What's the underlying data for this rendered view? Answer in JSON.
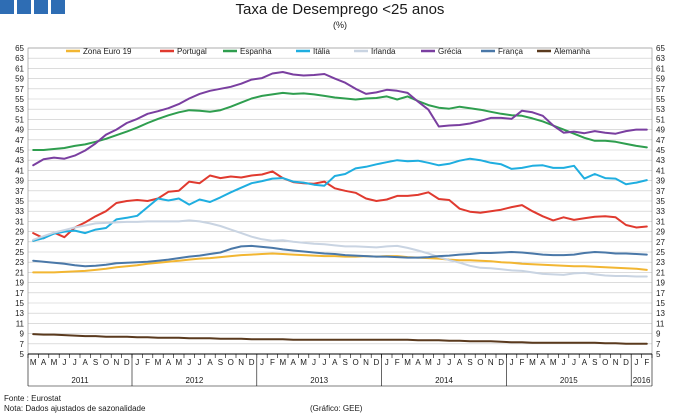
{
  "header": {
    "title": "Taxa de Desemprego <25 anos",
    "subtitle": "(%)"
  },
  "footer": {
    "source": "Fonte : Eurostat",
    "note": "Nota: Dados ajustados de sazonalidade",
    "credit": "(Gráfico: GEE)"
  },
  "colors": {
    "brand": "#2e6db4",
    "grid": "#c8c8c8",
    "axis": "#000000"
  },
  "chart_data": {
    "type": "line",
    "title": "Taxa de Desemprego <25 anos",
    "ylabel": "(%)",
    "ylim": [
      5,
      65
    ],
    "y_ticks": [
      5,
      7,
      9,
      11,
      13,
      15,
      17,
      19,
      21,
      23,
      25,
      27,
      29,
      31,
      33,
      35,
      37,
      39,
      41,
      43,
      45,
      47,
      49,
      51,
      53,
      55,
      57,
      59,
      61,
      63,
      65
    ],
    "grid": true,
    "legend_position": "top",
    "month_labels": [
      "M",
      "A",
      "M",
      "J",
      "J",
      "A",
      "S",
      "O",
      "N",
      "D",
      "J",
      "F",
      "M",
      "A",
      "M",
      "J",
      "J",
      "A",
      "S",
      "O",
      "N",
      "D",
      "J",
      "F",
      "M",
      "A",
      "M",
      "J",
      "J",
      "A",
      "S",
      "O",
      "N",
      "D",
      "J",
      "F",
      "M",
      "A",
      "M",
      "J",
      "J",
      "A",
      "S",
      "O",
      "N",
      "D",
      "J",
      "F",
      "M",
      "A",
      "M",
      "J",
      "J",
      "A",
      "S",
      "O",
      "N",
      "D",
      "J",
      "F"
    ],
    "year_labels": [
      {
        "label": "2011",
        "start": 0,
        "end": 9
      },
      {
        "label": "2012",
        "start": 10,
        "end": 21
      },
      {
        "label": "2013",
        "start": 22,
        "end": 33
      },
      {
        "label": "2014",
        "start": 34,
        "end": 45
      },
      {
        "label": "2015",
        "start": 46,
        "end": 57
      },
      {
        "label": "2016",
        "start": 58,
        "end": 59
      }
    ],
    "x": [
      "2011-03",
      "2011-04",
      "2011-05",
      "2011-06",
      "2011-07",
      "2011-08",
      "2011-09",
      "2011-10",
      "2011-11",
      "2011-12",
      "2012-01",
      "2012-02",
      "2012-03",
      "2012-04",
      "2012-05",
      "2012-06",
      "2012-07",
      "2012-08",
      "2012-09",
      "2012-10",
      "2012-11",
      "2012-12",
      "2013-01",
      "2013-02",
      "2013-03",
      "2013-04",
      "2013-05",
      "2013-06",
      "2013-07",
      "2013-08",
      "2013-09",
      "2013-10",
      "2013-11",
      "2013-12",
      "2014-01",
      "2014-02",
      "2014-03",
      "2014-04",
      "2014-05",
      "2014-06",
      "2014-07",
      "2014-08",
      "2014-09",
      "2014-10",
      "2014-11",
      "2014-12",
      "2015-01",
      "2015-02",
      "2015-03",
      "2015-04",
      "2015-05",
      "2015-06",
      "2015-07",
      "2015-08",
      "2015-09",
      "2015-10",
      "2015-11",
      "2015-12",
      "2016-01",
      "2016-02"
    ],
    "series": [
      {
        "name": "Zona Euro 19",
        "color": "#f2b632",
        "values": [
          21.0,
          21.0,
          21.0,
          21.1,
          21.2,
          21.3,
          21.5,
          21.7,
          22.0,
          22.2,
          22.4,
          22.7,
          22.9,
          23.1,
          23.3,
          23.5,
          23.7,
          23.8,
          24.0,
          24.2,
          24.4,
          24.5,
          24.6,
          24.7,
          24.6,
          24.5,
          24.4,
          24.3,
          24.2,
          24.2,
          24.1,
          24.1,
          24.2,
          24.1,
          24.2,
          24.2,
          24.0,
          23.9,
          23.8,
          23.7,
          23.5,
          23.4,
          23.4,
          23.3,
          23.2,
          23.0,
          22.9,
          22.7,
          22.6,
          22.5,
          22.4,
          22.3,
          22.2,
          22.2,
          22.1,
          22.0,
          21.9,
          21.8,
          21.7,
          21.5
        ]
      },
      {
        "name": "Portugal",
        "color": "#e03a2f",
        "values": [
          28.7,
          27.7,
          28.8,
          27.9,
          29.8,
          30.8,
          32.0,
          33.0,
          34.6,
          35.0,
          35.2,
          35.0,
          35.5,
          36.8,
          37.0,
          38.8,
          38.5,
          40.0,
          39.5,
          39.8,
          39.6,
          40.0,
          40.2,
          40.8,
          39.5,
          38.7,
          38.5,
          38.4,
          38.8,
          37.5,
          37.0,
          36.6,
          35.5,
          35.0,
          35.3,
          36.0,
          36.0,
          36.2,
          36.7,
          35.4,
          35.2,
          33.5,
          32.9,
          32.7,
          33.0,
          33.3,
          33.8,
          34.2,
          33.0,
          32.0,
          31.2,
          31.8,
          31.3,
          31.6,
          31.9,
          32.0,
          31.8,
          30.3,
          29.8,
          30.0
        ]
      },
      {
        "name": "Espanha",
        "color": "#2f9e4f",
        "values": [
          45.0,
          45.0,
          45.2,
          45.4,
          45.8,
          46.1,
          46.6,
          47.2,
          47.9,
          48.6,
          49.4,
          50.3,
          51.1,
          51.8,
          52.4,
          52.8,
          52.7,
          52.5,
          52.8,
          53.5,
          54.3,
          55.1,
          55.6,
          55.9,
          56.2,
          56.0,
          56.1,
          55.9,
          55.6,
          55.3,
          55.1,
          54.9,
          55.1,
          55.2,
          55.5,
          54.9,
          55.5,
          54.6,
          53.8,
          53.3,
          53.1,
          53.5,
          53.2,
          52.9,
          52.5,
          52.1,
          51.8,
          51.7,
          51.2,
          50.6,
          49.8,
          49.0,
          48.2,
          47.4,
          46.8,
          46.8,
          46.6,
          46.2,
          45.8,
          45.5
        ]
      },
      {
        "name": "Itália",
        "color": "#1faee0",
        "values": [
          27.2,
          27.7,
          28.6,
          29.0,
          29.2,
          28.7,
          29.4,
          29.7,
          31.4,
          31.7,
          32.1,
          33.8,
          35.5,
          35.1,
          35.5,
          34.3,
          35.3,
          34.8,
          35.7,
          36.7,
          37.6,
          38.5,
          38.9,
          39.4,
          39.5,
          38.8,
          38.6,
          38.2,
          38.0,
          39.9,
          40.3,
          41.4,
          41.7,
          42.2,
          42.6,
          43.0,
          42.8,
          42.9,
          42.5,
          42.0,
          42.3,
          42.9,
          43.3,
          43.0,
          42.5,
          42.2,
          41.3,
          41.5,
          41.9,
          42.0,
          41.5,
          41.5,
          41.9,
          39.4,
          40.3,
          39.5,
          39.4,
          38.3,
          38.6,
          39.1
        ]
      },
      {
        "name": "Irlanda",
        "color": "#c9d4e2",
        "values": [
          27.4,
          28.1,
          28.8,
          29.3,
          29.8,
          30.2,
          30.6,
          30.7,
          30.8,
          30.9,
          30.9,
          31.0,
          31.0,
          31.0,
          31.0,
          31.2,
          31.0,
          30.6,
          30.1,
          29.4,
          28.7,
          28.0,
          27.5,
          27.2,
          27.3,
          27.0,
          26.8,
          26.6,
          26.5,
          26.3,
          26.1,
          26.1,
          26.0,
          25.9,
          26.1,
          26.2,
          25.8,
          25.3,
          24.7,
          24.0,
          23.4,
          22.9,
          22.3,
          21.9,
          21.8,
          21.6,
          21.4,
          21.3,
          21.0,
          20.7,
          20.6,
          20.5,
          20.8,
          20.9,
          20.6,
          20.4,
          20.3,
          20.3,
          20.2,
          20.2
        ]
      },
      {
        "name": "Grécia",
        "color": "#7a3fa0",
        "values": [
          42.0,
          43.2,
          43.5,
          43.3,
          43.9,
          44.9,
          46.3,
          48.0,
          49.0,
          50.3,
          51.1,
          52.1,
          52.6,
          53.2,
          54.0,
          55.1,
          56.0,
          56.6,
          57.0,
          57.4,
          58.0,
          58.8,
          59.1,
          60.0,
          60.3,
          59.8,
          59.6,
          59.7,
          59.9,
          59.0,
          58.2,
          57.0,
          56.0,
          56.3,
          56.8,
          56.6,
          56.2,
          54.5,
          52.9,
          49.6,
          49.8,
          49.9,
          50.2,
          50.7,
          51.3,
          51.3,
          51.1,
          52.7,
          52.4,
          51.7,
          49.8,
          48.4,
          48.6,
          48.3,
          48.7,
          48.4,
          48.2,
          48.7,
          49.0,
          49.0
        ]
      },
      {
        "name": "França",
        "color": "#4a78a8",
        "values": [
          23.3,
          23.1,
          22.9,
          22.7,
          22.4,
          22.2,
          22.3,
          22.5,
          22.8,
          22.9,
          23.0,
          23.1,
          23.3,
          23.5,
          23.8,
          24.1,
          24.3,
          24.6,
          24.9,
          25.6,
          26.1,
          26.2,
          26.0,
          25.8,
          25.5,
          25.3,
          25.1,
          24.9,
          24.7,
          24.6,
          24.4,
          24.3,
          24.2,
          24.1,
          24.1,
          24.0,
          23.9,
          23.9,
          24.0,
          24.2,
          24.3,
          24.5,
          24.6,
          24.8,
          24.8,
          24.9,
          25.0,
          24.9,
          24.7,
          24.5,
          24.4,
          24.4,
          24.5,
          24.8,
          25.0,
          24.9,
          24.7,
          24.7,
          24.6,
          24.5
        ]
      },
      {
        "name": "Alemanha",
        "color": "#5a3a1e",
        "values": [
          8.9,
          8.8,
          8.8,
          8.7,
          8.6,
          8.5,
          8.5,
          8.4,
          8.4,
          8.4,
          8.3,
          8.3,
          8.2,
          8.2,
          8.2,
          8.1,
          8.1,
          8.1,
          8.0,
          8.0,
          8.0,
          7.9,
          7.9,
          7.9,
          7.9,
          7.8,
          7.8,
          7.8,
          7.8,
          7.8,
          7.8,
          7.8,
          7.8,
          7.8,
          7.8,
          7.8,
          7.8,
          7.7,
          7.7,
          7.7,
          7.6,
          7.6,
          7.5,
          7.5,
          7.5,
          7.4,
          7.3,
          7.3,
          7.2,
          7.2,
          7.2,
          7.2,
          7.2,
          7.2,
          7.2,
          7.1,
          7.1,
          7.0,
          7.0,
          7.0
        ]
      }
    ]
  }
}
